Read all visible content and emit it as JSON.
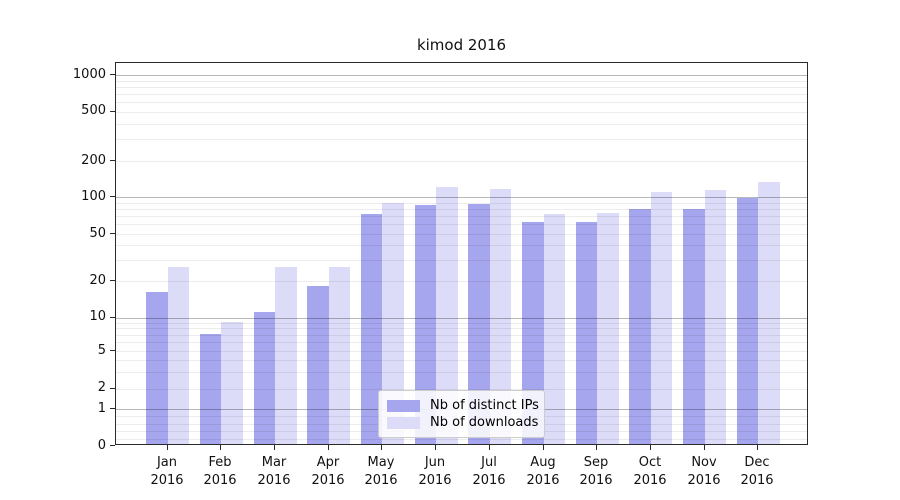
{
  "title": "kimod 2016",
  "chart_data": {
    "type": "bar",
    "title": "kimod 2016",
    "categories": [
      "Jan",
      "Feb",
      "Mar",
      "Apr",
      "May",
      "Jun",
      "Jul",
      "Aug",
      "Sep",
      "Oct",
      "Nov",
      "Dec"
    ],
    "category_year": "2016",
    "series": [
      {
        "name": "Nb of distinct IPs",
        "color": "#a6a6ee",
        "values": [
          16,
          7,
          11,
          18,
          71,
          84,
          86,
          61,
          61,
          78,
          78,
          96
        ]
      },
      {
        "name": "Nb of downloads",
        "color": "#dcdcf8",
        "values": [
          26,
          9,
          26,
          26,
          87,
          119,
          115,
          71,
          73,
          109,
          112,
          130
        ]
      }
    ],
    "yscale": "symlog",
    "y_ticks": [
      0,
      1,
      2,
      5,
      10,
      20,
      50,
      100,
      200,
      500,
      1000
    ],
    "ylim": [
      0,
      1300
    ],
    "grid": true,
    "legend_position": "lower center"
  },
  "colors": {
    "axis": "#2a2a2a",
    "bar_dark": "#a6a6ee",
    "bar_light": "#dcdcf8",
    "background": "#ffffff"
  }
}
